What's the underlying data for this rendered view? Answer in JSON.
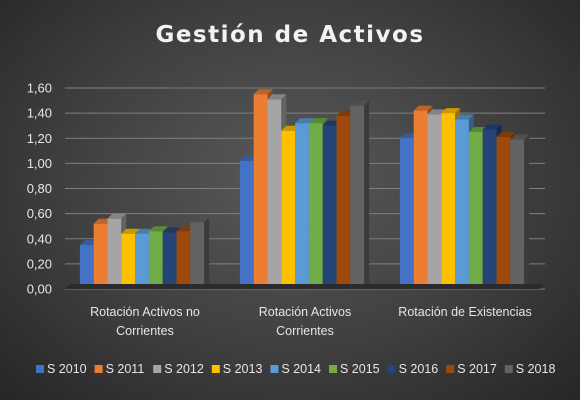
{
  "chart_data": {
    "type": "bar",
    "title": "Gestión de Activos",
    "categories": [
      [
        "Rotación Activos no",
        "Corrientes"
      ],
      [
        "Rotación Activos",
        "Corrientes"
      ],
      [
        "Rotación de Existencias"
      ]
    ],
    "ylim": [
      0,
      1.6
    ],
    "yticks": [
      "0,00",
      "0,20",
      "0,40",
      "0,60",
      "0,80",
      "1,00",
      "1,20",
      "1,40",
      "1,60"
    ],
    "grid": true,
    "legend_position": "bottom",
    "series": [
      {
        "name": "S 2010",
        "color": "#4472c4",
        "values": [
          0.35,
          1.02,
          1.2
        ]
      },
      {
        "name": "S 2011",
        "color": "#ed7d31",
        "values": [
          0.52,
          1.55,
          1.42
        ]
      },
      {
        "name": "S 2012",
        "color": "#a5a5a5",
        "values": [
          0.56,
          1.51,
          1.39
        ]
      },
      {
        "name": "S 2013",
        "color": "#ffc000",
        "values": [
          0.44,
          1.26,
          1.4
        ]
      },
      {
        "name": "S 2014",
        "color": "#5b9bd5",
        "values": [
          0.44,
          1.32,
          1.35
        ]
      },
      {
        "name": "S 2015",
        "color": "#70ad47",
        "values": [
          0.46,
          1.32,
          1.25
        ]
      },
      {
        "name": "S 2016",
        "color": "#264478",
        "values": [
          0.45,
          1.3,
          1.27
        ]
      },
      {
        "name": "S 2017",
        "color": "#9e480e",
        "values": [
          0.46,
          1.38,
          1.21
        ]
      },
      {
        "name": "S 2018",
        "color": "#636363",
        "values": [
          0.53,
          1.46,
          1.19
        ]
      }
    ]
  }
}
